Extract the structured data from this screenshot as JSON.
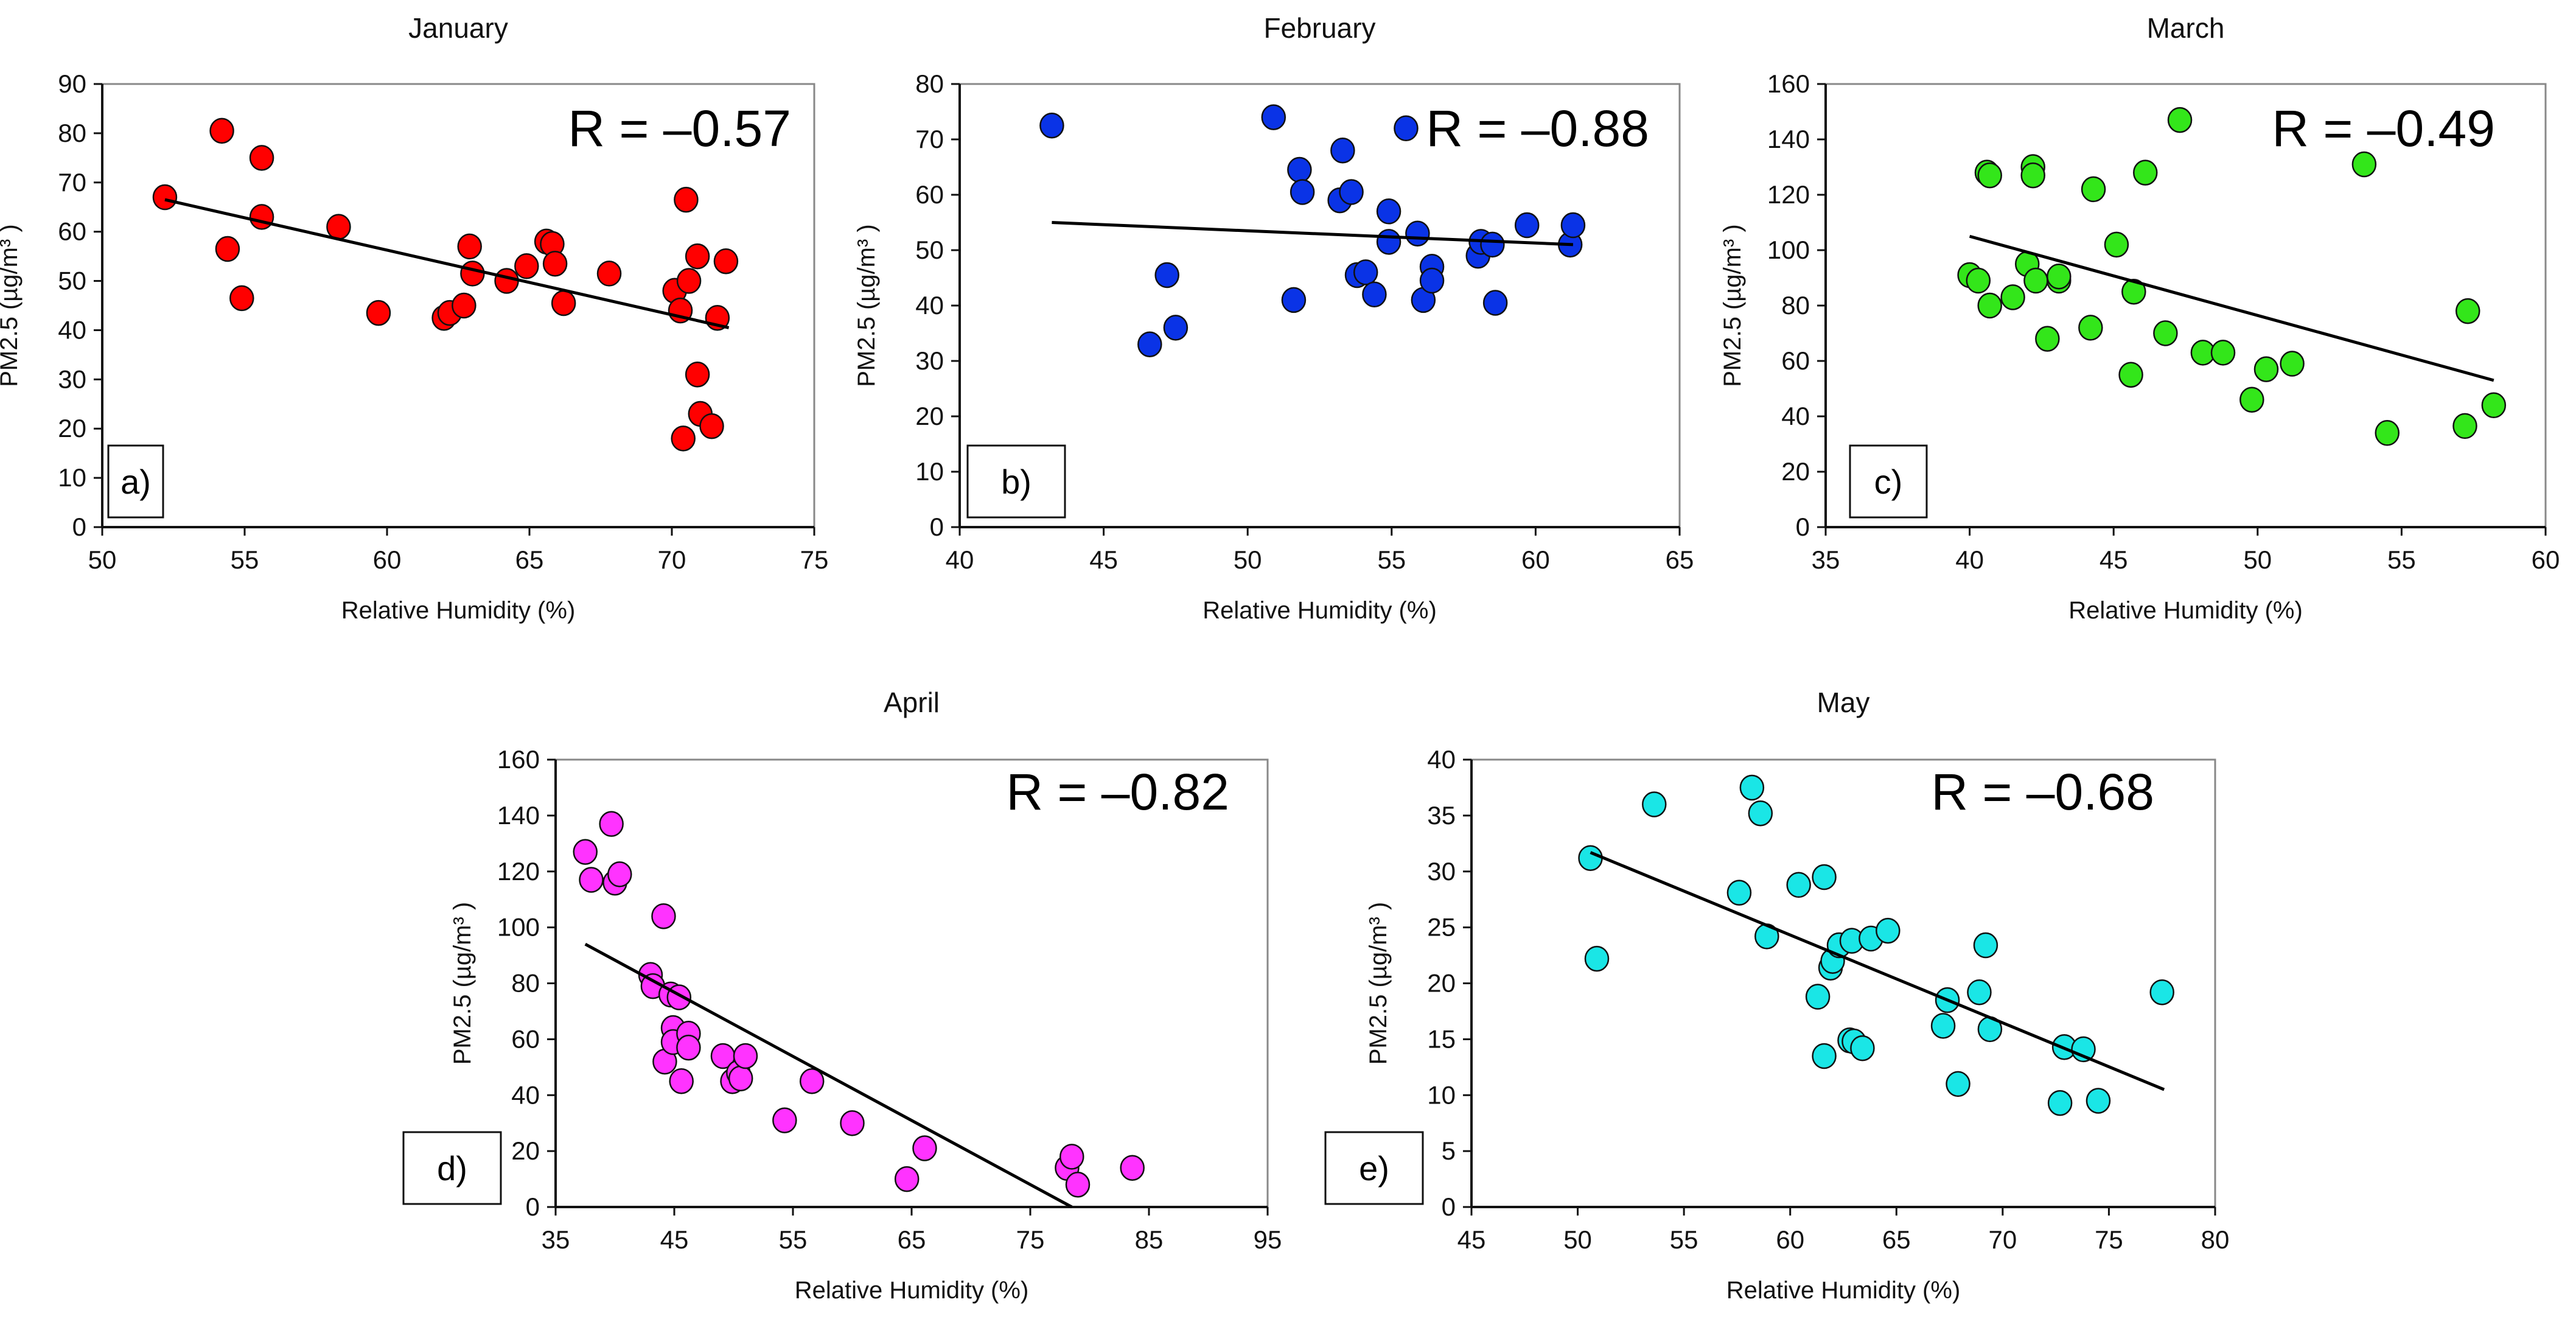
{
  "figure": {
    "description_free": true
  },
  "chart_data": [
    {
      "id": "a",
      "type": "scatter",
      "title": "January",
      "xlabel": "Relative Humidity (%)",
      "ylabel": "PM2.5 (µg/m³ )",
      "xlim": [
        50,
        75
      ],
      "ylim": [
        0,
        90
      ],
      "xticks": [
        50,
        55,
        60,
        65,
        70,
        75
      ],
      "yticks": [
        0,
        10,
        20,
        30,
        40,
        50,
        60,
        70,
        80,
        90
      ],
      "grid": false,
      "r_text": "R = –0.57",
      "panel_label": "a)",
      "marker_color": "#ff0000",
      "trendline": {
        "x": [
          52.2,
          72.0
        ],
        "y": [
          66.5,
          40.5
        ]
      },
      "points": [
        {
          "x": 52.2,
          "y": 67.0
        },
        {
          "x": 54.2,
          "y": 80.5
        },
        {
          "x": 54.4,
          "y": 56.5
        },
        {
          "x": 54.9,
          "y": 46.5
        },
        {
          "x": 55.6,
          "y": 75.0
        },
        {
          "x": 55.6,
          "y": 63.0
        },
        {
          "x": 58.3,
          "y": 61.0
        },
        {
          "x": 59.7,
          "y": 43.5
        },
        {
          "x": 62.0,
          "y": 42.5
        },
        {
          "x": 62.2,
          "y": 43.5
        },
        {
          "x": 62.7,
          "y": 45.0
        },
        {
          "x": 62.9,
          "y": 57.0
        },
        {
          "x": 63.0,
          "y": 51.5
        },
        {
          "x": 64.2,
          "y": 50.0
        },
        {
          "x": 64.9,
          "y": 53.0
        },
        {
          "x": 65.6,
          "y": 58.0
        },
        {
          "x": 65.8,
          "y": 57.5
        },
        {
          "x": 65.9,
          "y": 53.5
        },
        {
          "x": 66.2,
          "y": 45.5
        },
        {
          "x": 67.8,
          "y": 51.5
        },
        {
          "x": 70.1,
          "y": 48.0
        },
        {
          "x": 70.3,
          "y": 44.0
        },
        {
          "x": 70.4,
          "y": 18.0
        },
        {
          "x": 70.5,
          "y": 66.5
        },
        {
          "x": 70.6,
          "y": 50.0
        },
        {
          "x": 70.9,
          "y": 55.0
        },
        {
          "x": 70.9,
          "y": 31.0
        },
        {
          "x": 71.0,
          "y": 23.0
        },
        {
          "x": 71.4,
          "y": 20.5
        },
        {
          "x": 71.6,
          "y": 42.5
        },
        {
          "x": 71.9,
          "y": 54.0
        }
      ]
    },
    {
      "id": "b",
      "type": "scatter",
      "title": "February",
      "xlabel": "Relative Humidity (%)",
      "ylabel": "PM2.5 (µg/m³ )",
      "xlim": [
        40,
        65
      ],
      "ylim": [
        0,
        80
      ],
      "xticks": [
        40,
        45,
        50,
        55,
        60,
        65
      ],
      "yticks": [
        0,
        10,
        20,
        30,
        40,
        50,
        60,
        70,
        80
      ],
      "grid": false,
      "r_text": "R = –0.88",
      "panel_label": "b)",
      "marker_color": "#0a33e6",
      "trendline": {
        "x": [
          43.2,
          61.3
        ],
        "y": [
          55.0,
          51.0
        ]
      },
      "points": [
        {
          "x": 43.2,
          "y": 72.5
        },
        {
          "x": 46.6,
          "y": 33.0
        },
        {
          "x": 47.2,
          "y": 45.5
        },
        {
          "x": 47.5,
          "y": 36.0
        },
        {
          "x": 50.9,
          "y": 74.0
        },
        {
          "x": 51.6,
          "y": 41.0
        },
        {
          "x": 51.8,
          "y": 64.5
        },
        {
          "x": 51.9,
          "y": 60.5
        },
        {
          "x": 53.2,
          "y": 59.0
        },
        {
          "x": 53.3,
          "y": 68.0
        },
        {
          "x": 53.6,
          "y": 60.5
        },
        {
          "x": 53.8,
          "y": 45.5
        },
        {
          "x": 54.1,
          "y": 46.0
        },
        {
          "x": 54.4,
          "y": 42.0
        },
        {
          "x": 54.9,
          "y": 51.5
        },
        {
          "x": 54.9,
          "y": 57.0
        },
        {
          "x": 55.5,
          "y": 72.0
        },
        {
          "x": 55.9,
          "y": 53.0
        },
        {
          "x": 56.1,
          "y": 41.0
        },
        {
          "x": 56.4,
          "y": 47.0
        },
        {
          "x": 56.4,
          "y": 44.5
        },
        {
          "x": 58.0,
          "y": 49.0
        },
        {
          "x": 58.1,
          "y": 51.5
        },
        {
          "x": 58.5,
          "y": 51.0
        },
        {
          "x": 58.6,
          "y": 40.5
        },
        {
          "x": 59.7,
          "y": 54.5
        },
        {
          "x": 61.2,
          "y": 51.0
        },
        {
          "x": 61.3,
          "y": 54.5
        }
      ]
    },
    {
      "id": "c",
      "type": "scatter",
      "title": "March",
      "xlabel": "Relative Humidity (%)",
      "ylabel": "PM2.5 (µg/m³ )",
      "xlim": [
        35,
        60
      ],
      "ylim": [
        0,
        160
      ],
      "xticks": [
        35,
        40,
        45,
        50,
        55,
        60
      ],
      "yticks": [
        0,
        20,
        40,
        60,
        80,
        100,
        120,
        140,
        160
      ],
      "grid": false,
      "r_text": "R = –0.49",
      "panel_label": "c)",
      "marker_color": "#33e61a",
      "trendline": {
        "x": [
          40.0,
          58.2
        ],
        "y": [
          105.0,
          53.0
        ]
      },
      "points": [
        {
          "x": 40.0,
          "y": 91.0
        },
        {
          "x": 40.3,
          "y": 89.0
        },
        {
          "x": 40.6,
          "y": 128.0
        },
        {
          "x": 40.7,
          "y": 80.0
        },
        {
          "x": 40.7,
          "y": 127.0
        },
        {
          "x": 41.5,
          "y": 83.0
        },
        {
          "x": 42.0,
          "y": 95.0
        },
        {
          "x": 42.2,
          "y": 130.0
        },
        {
          "x": 42.2,
          "y": 127.0
        },
        {
          "x": 42.3,
          "y": 89.0
        },
        {
          "x": 42.7,
          "y": 68.0
        },
        {
          "x": 43.1,
          "y": 89.0
        },
        {
          "x": 43.1,
          "y": 90.5
        },
        {
          "x": 44.2,
          "y": 72.0
        },
        {
          "x": 44.3,
          "y": 122.0
        },
        {
          "x": 45.1,
          "y": 102.0
        },
        {
          "x": 45.6,
          "y": 55.0
        },
        {
          "x": 45.7,
          "y": 85.0
        },
        {
          "x": 46.1,
          "y": 128.0
        },
        {
          "x": 46.8,
          "y": 70.0
        },
        {
          "x": 47.3,
          "y": 147.0
        },
        {
          "x": 48.1,
          "y": 63.0
        },
        {
          "x": 48.8,
          "y": 63.0
        },
        {
          "x": 49.8,
          "y": 46.0
        },
        {
          "x": 50.3,
          "y": 57.0
        },
        {
          "x": 51.2,
          "y": 59.0
        },
        {
          "x": 53.7,
          "y": 131.0
        },
        {
          "x": 54.5,
          "y": 34.0
        },
        {
          "x": 57.2,
          "y": 36.5
        },
        {
          "x": 57.3,
          "y": 78.0
        },
        {
          "x": 58.2,
          "y": 44.0
        }
      ]
    },
    {
      "id": "d",
      "type": "scatter",
      "title": "April",
      "xlabel": "Relative Humidity (%)",
      "ylabel": "PM2.5 (µg/m³ )",
      "xlim": [
        35,
        95
      ],
      "ylim": [
        0,
        160
      ],
      "xticks": [
        35,
        45,
        55,
        65,
        75,
        85,
        95
      ],
      "yticks": [
        0,
        20,
        40,
        60,
        80,
        100,
        120,
        140,
        160
      ],
      "grid": false,
      "r_text": "R = –0.82",
      "panel_label": "d)",
      "marker_color": "#ff33ff",
      "trendline": {
        "x": [
          37.5,
          78.5
        ],
        "y": [
          94.0,
          0.0
        ]
      },
      "points": [
        {
          "x": 37.5,
          "y": 127.0
        },
        {
          "x": 38.0,
          "y": 117.0
        },
        {
          "x": 39.7,
          "y": 137.0
        },
        {
          "x": 40.0,
          "y": 116.0
        },
        {
          "x": 40.4,
          "y": 119.0
        },
        {
          "x": 43.0,
          "y": 83.0
        },
        {
          "x": 43.2,
          "y": 79.0
        },
        {
          "x": 44.1,
          "y": 104.0
        },
        {
          "x": 44.2,
          "y": 52.0
        },
        {
          "x": 44.7,
          "y": 76.0
        },
        {
          "x": 44.9,
          "y": 64.0
        },
        {
          "x": 44.9,
          "y": 59.0
        },
        {
          "x": 45.4,
          "y": 75.0
        },
        {
          "x": 45.6,
          "y": 45.0
        },
        {
          "x": 46.2,
          "y": 62.0
        },
        {
          "x": 46.2,
          "y": 57.0
        },
        {
          "x": 49.1,
          "y": 54.0
        },
        {
          "x": 49.9,
          "y": 45.0
        },
        {
          "x": 50.4,
          "y": 48.0
        },
        {
          "x": 50.6,
          "y": 46.0
        },
        {
          "x": 51.0,
          "y": 54.0
        },
        {
          "x": 54.3,
          "y": 31.0
        },
        {
          "x": 56.6,
          "y": 45.0
        },
        {
          "x": 60.0,
          "y": 30.0
        },
        {
          "x": 64.6,
          "y": 10.0
        },
        {
          "x": 66.1,
          "y": 21.0
        },
        {
          "x": 78.1,
          "y": 14.0
        },
        {
          "x": 78.5,
          "y": 18.0
        },
        {
          "x": 79.0,
          "y": 8.0
        },
        {
          "x": 83.6,
          "y": 14.0
        }
      ]
    },
    {
      "id": "e",
      "type": "scatter",
      "title": "May",
      "xlabel": "Relative Humidity (%)",
      "ylabel": "PM2.5 (µg/m³ )",
      "xlim": [
        45,
        80
      ],
      "ylim": [
        0,
        40
      ],
      "xticks": [
        45,
        50,
        55,
        60,
        65,
        70,
        75,
        80
      ],
      "yticks": [
        0,
        5,
        10,
        15,
        20,
        25,
        30,
        35,
        40
      ],
      "grid": false,
      "r_text": "R = –0.68",
      "panel_label": "e)",
      "marker_color": "#1ae6e6",
      "trendline": {
        "x": [
          50.6,
          77.6
        ],
        "y": [
          31.7,
          10.5
        ]
      },
      "points": [
        {
          "x": 50.6,
          "y": 31.2
        },
        {
          "x": 50.9,
          "y": 22.2
        },
        {
          "x": 53.6,
          "y": 36.0
        },
        {
          "x": 57.6,
          "y": 28.1
        },
        {
          "x": 58.2,
          "y": 37.5
        },
        {
          "x": 58.6,
          "y": 35.2
        },
        {
          "x": 58.9,
          "y": 24.2
        },
        {
          "x": 60.4,
          "y": 28.8
        },
        {
          "x": 61.3,
          "y": 18.8
        },
        {
          "x": 61.6,
          "y": 13.5
        },
        {
          "x": 61.6,
          "y": 29.5
        },
        {
          "x": 61.9,
          "y": 21.4
        },
        {
          "x": 62.0,
          "y": 22.0
        },
        {
          "x": 62.3,
          "y": 23.4
        },
        {
          "x": 62.8,
          "y": 14.9
        },
        {
          "x": 62.9,
          "y": 23.8
        },
        {
          "x": 63.0,
          "y": 14.8
        },
        {
          "x": 63.4,
          "y": 14.2
        },
        {
          "x": 63.8,
          "y": 24.0
        },
        {
          "x": 64.6,
          "y": 24.7
        },
        {
          "x": 67.2,
          "y": 16.2
        },
        {
          "x": 67.4,
          "y": 18.5
        },
        {
          "x": 67.9,
          "y": 11.0
        },
        {
          "x": 68.9,
          "y": 19.2
        },
        {
          "x": 69.2,
          "y": 23.4
        },
        {
          "x": 69.4,
          "y": 15.9
        },
        {
          "x": 72.7,
          "y": 9.3
        },
        {
          "x": 72.9,
          "y": 14.3
        },
        {
          "x": 73.8,
          "y": 14.1
        },
        {
          "x": 74.5,
          "y": 9.5
        },
        {
          "x": 77.5,
          "y": 19.2
        }
      ]
    }
  ]
}
